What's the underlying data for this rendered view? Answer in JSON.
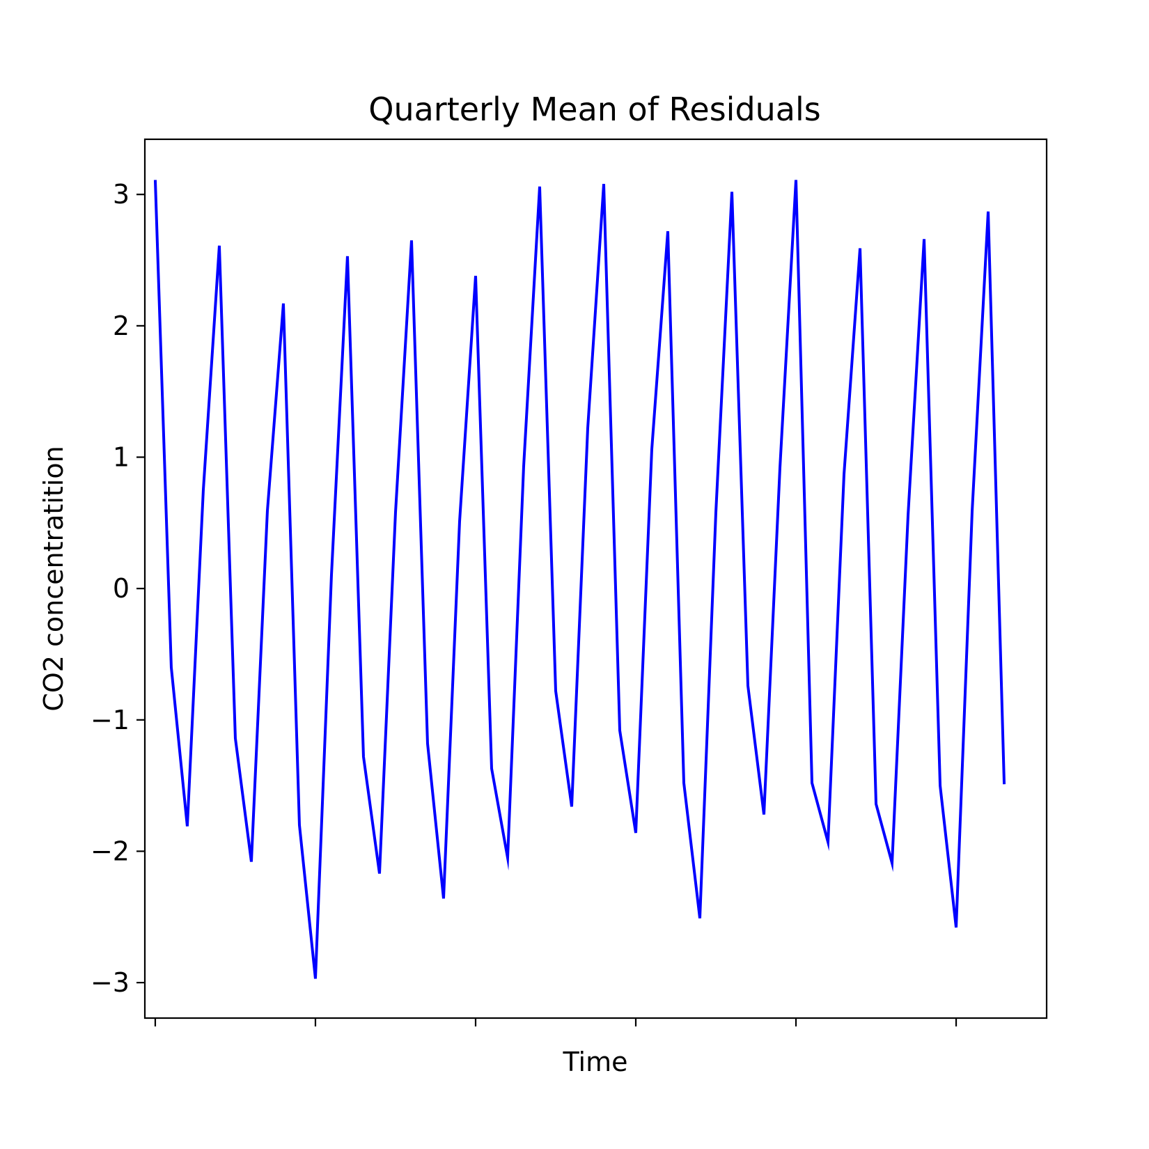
{
  "chart_data": {
    "type": "line",
    "title": "Quarterly Mean of Residuals",
    "xlabel": "Time",
    "ylabel": "CO2 concentratition",
    "xlim": [
      -0.65,
      55.65
    ],
    "ylim": [
      -3.27,
      3.42
    ],
    "yticks": [
      3,
      2,
      1,
      0,
      -1,
      -2,
      -3
    ],
    "ytick_labels": [
      "3",
      "2",
      "1",
      "0",
      "−1",
      "−2",
      "−3"
    ],
    "xticks": [
      0,
      10,
      20,
      30,
      40,
      50
    ],
    "xtick_labels": [
      "",
      "",
      "",
      "",
      "",
      ""
    ],
    "grid": false,
    "series": [
      {
        "color": "#0000ff",
        "x": [
          0,
          1,
          2,
          3,
          4,
          5,
          6,
          7,
          8,
          9,
          10,
          11,
          12,
          13,
          14,
          15,
          16,
          17,
          18,
          19,
          20,
          21,
          22,
          23,
          24,
          25,
          26,
          27,
          28,
          29,
          30,
          31,
          32,
          33,
          34,
          35,
          36,
          37,
          38,
          39,
          40,
          41,
          42,
          43,
          44,
          45,
          46,
          47,
          48,
          49,
          50,
          51,
          52,
          53
        ],
        "y": [
          3.11,
          -0.6,
          -1.81,
          0.75,
          2.61,
          -1.14,
          -2.08,
          0.59,
          2.17,
          -1.8,
          -2.97,
          0.1,
          2.53,
          -1.28,
          -2.17,
          0.58,
          2.65,
          -1.18,
          -2.36,
          0.51,
          2.38,
          -1.37,
          -2.05,
          0.93,
          3.06,
          -0.78,
          -1.66,
          1.22,
          3.08,
          -1.08,
          -1.86,
          1.06,
          2.72,
          -1.48,
          -2.51,
          0.58,
          3.02,
          -0.74,
          -1.72,
          0.92,
          3.11,
          -1.48,
          -1.93,
          0.87,
          2.59,
          -1.64,
          -2.09,
          0.56,
          2.66,
          -1.5,
          -2.58,
          0.59,
          2.87,
          -1.49
        ]
      }
    ]
  }
}
